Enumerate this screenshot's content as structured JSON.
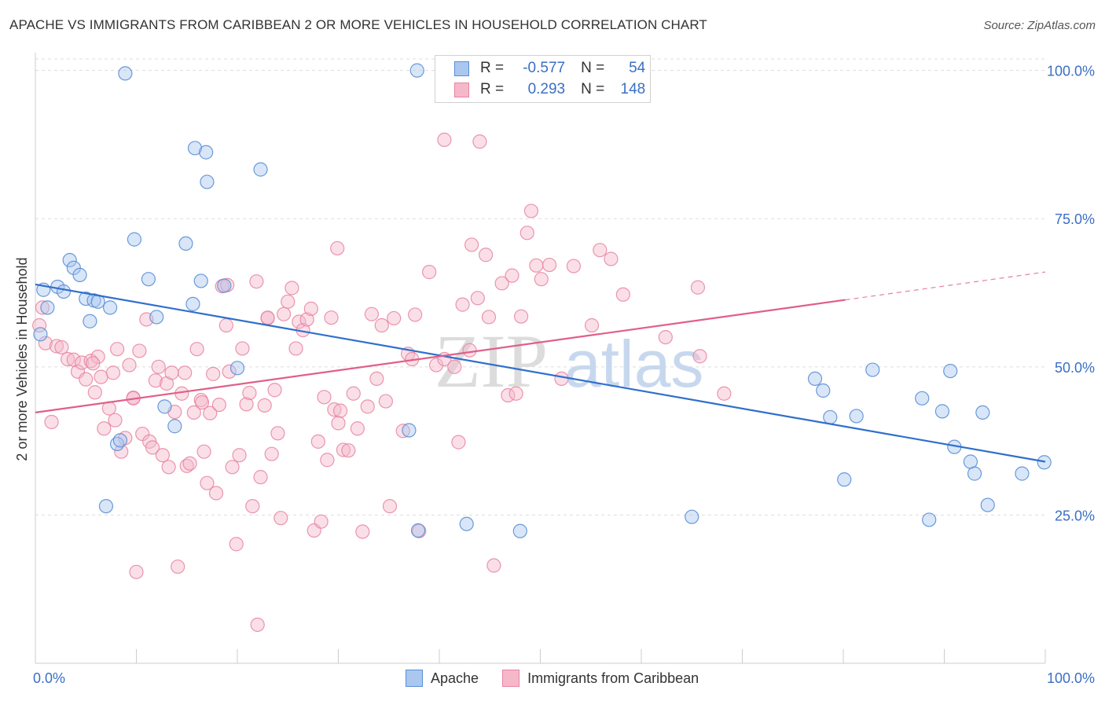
{
  "header": {
    "title": "APACHE VS IMMIGRANTS FROM CARIBBEAN 2 OR MORE VEHICLES IN HOUSEHOLD CORRELATION CHART",
    "source": "Source: ZipAtlas.com"
  },
  "legend": {
    "rows": [
      {
        "r_label": "R =",
        "r_value": "-0.577",
        "n_label": "N =",
        "n_value": "54"
      },
      {
        "r_label": "R =",
        "r_value": "0.293",
        "n_label": "N =",
        "n_value": "148"
      }
    ]
  },
  "watermark": {
    "zip": "ZIP",
    "atlas": "atlas"
  },
  "colors": {
    "apache_fill": "#a9c7ef",
    "apache_stroke": "#5b8fd6",
    "apache_line": "#2f6fcc",
    "carib_fill": "#f5b8cb",
    "carib_stroke": "#e8849f",
    "carib_line": "#e05f89",
    "tick_label": "#3a6fc4",
    "grid": "#dddddd"
  },
  "chart_data": {
    "type": "scatter",
    "title": "APACHE VS IMMIGRANTS FROM CARIBBEAN 2 OR MORE VEHICLES IN HOUSEHOLD CORRELATION CHART",
    "xlabel": "",
    "ylabel": "2 or more Vehicles in Household",
    "xlim": [
      0,
      100
    ],
    "ylim": [
      0,
      103
    ],
    "x_tick_labels": [
      "0.0%",
      "100.0%"
    ],
    "y_ticks": [
      25,
      50,
      75,
      100
    ],
    "y_tick_labels": [
      "25.0%",
      "50.0%",
      "75.0%",
      "100.0%"
    ],
    "grid": true,
    "legend_position": "bottom",
    "series": [
      {
        "name": "Apache",
        "r": -0.577,
        "n": 54,
        "trend": {
          "x": [
            0,
            100
          ],
          "y": [
            63.9,
            34.0
          ]
        },
        "points": [
          [
            0.5,
            55.5
          ],
          [
            0.8,
            63.0
          ],
          [
            1.2,
            60.0
          ],
          [
            2.2,
            63.5
          ],
          [
            2.8,
            62.7
          ],
          [
            3.4,
            68.0
          ],
          [
            3.8,
            66.7
          ],
          [
            4.4,
            65.5
          ],
          [
            5.0,
            61.5
          ],
          [
            5.4,
            57.7
          ],
          [
            5.8,
            61.2
          ],
          [
            6.2,
            61.0
          ],
          [
            7.4,
            60.0
          ],
          [
            7.0,
            26.5
          ],
          [
            8.1,
            37.0
          ],
          [
            8.4,
            37.6
          ],
          [
            8.9,
            99.5
          ],
          [
            9.8,
            71.5
          ],
          [
            11.2,
            64.8
          ],
          [
            12.0,
            58.4
          ],
          [
            12.8,
            43.3
          ],
          [
            13.8,
            40.0
          ],
          [
            14.9,
            70.8
          ],
          [
            15.6,
            60.6
          ],
          [
            15.8,
            86.9
          ],
          [
            16.4,
            64.5
          ],
          [
            16.9,
            86.2
          ],
          [
            17.0,
            81.2
          ],
          [
            18.7,
            63.7
          ],
          [
            20.0,
            49.8
          ],
          [
            22.3,
            83.3
          ],
          [
            37.0,
            39.3
          ],
          [
            37.9,
            22.4
          ],
          [
            37.8,
            100.0
          ],
          [
            42.7,
            23.5
          ],
          [
            48.0,
            22.3
          ],
          [
            65.0,
            24.7
          ],
          [
            77.2,
            48.0
          ],
          [
            78.0,
            46.0
          ],
          [
            78.7,
            41.5
          ],
          [
            80.1,
            31.0
          ],
          [
            81.3,
            41.7
          ],
          [
            82.9,
            49.5
          ],
          [
            87.8,
            44.7
          ],
          [
            88.5,
            24.2
          ],
          [
            89.8,
            42.5
          ],
          [
            90.6,
            49.3
          ],
          [
            91.0,
            36.5
          ],
          [
            92.6,
            34.0
          ],
          [
            93.0,
            32.0
          ],
          [
            93.8,
            42.3
          ],
          [
            94.3,
            26.7
          ],
          [
            97.7,
            32.0
          ],
          [
            99.9,
            33.9
          ]
        ]
      },
      {
        "name": "Immigrants from Caribbean",
        "r": 0.293,
        "n": 148,
        "trend": {
          "x": [
            0,
            80.2
          ],
          "y": [
            42.3,
            61.3
          ]
        },
        "trend_dashed": {
          "x": [
            80.2,
            100
          ],
          "y": [
            61.3,
            66.0
          ]
        },
        "points": [
          [
            0.4,
            57.0
          ],
          [
            0.7,
            60.0
          ],
          [
            1.0,
            54.0
          ],
          [
            1.6,
            40.7
          ],
          [
            2.1,
            53.5
          ],
          [
            2.6,
            53.3
          ],
          [
            3.2,
            51.3
          ],
          [
            3.8,
            51.2
          ],
          [
            4.2,
            49.2
          ],
          [
            4.6,
            50.7
          ],
          [
            5.0,
            47.9
          ],
          [
            5.5,
            51.0
          ],
          [
            5.9,
            45.7
          ],
          [
            6.2,
            51.7
          ],
          [
            6.5,
            48.3
          ],
          [
            6.8,
            39.6
          ],
          [
            7.3,
            43.0
          ],
          [
            7.7,
            49.0
          ],
          [
            7.9,
            41.0
          ],
          [
            8.1,
            53.0
          ],
          [
            8.5,
            35.7
          ],
          [
            8.9,
            38.0
          ],
          [
            9.3,
            50.3
          ],
          [
            9.7,
            44.8
          ],
          [
            10.0,
            15.4
          ],
          [
            10.3,
            52.7
          ],
          [
            10.6,
            38.7
          ],
          [
            11.0,
            58.0
          ],
          [
            11.3,
            37.4
          ],
          [
            11.6,
            36.4
          ],
          [
            11.9,
            47.7
          ],
          [
            12.2,
            50.0
          ],
          [
            12.6,
            35.1
          ],
          [
            13.0,
            47.2
          ],
          [
            13.2,
            33.1
          ],
          [
            13.5,
            49.0
          ],
          [
            13.8,
            42.4
          ],
          [
            14.1,
            16.3
          ],
          [
            14.5,
            45.5
          ],
          [
            14.8,
            49.0
          ],
          [
            15.0,
            33.3
          ],
          [
            15.3,
            33.7
          ],
          [
            15.7,
            42.3
          ],
          [
            16.0,
            53.0
          ],
          [
            16.4,
            44.4
          ],
          [
            16.7,
            35.7
          ],
          [
            17.0,
            30.4
          ],
          [
            17.3,
            42.2
          ],
          [
            17.6,
            48.8
          ],
          [
            17.9,
            28.7
          ],
          [
            18.2,
            43.6
          ],
          [
            18.5,
            63.6
          ],
          [
            18.9,
            57.0
          ],
          [
            19.2,
            49.2
          ],
          [
            19.5,
            33.1
          ],
          [
            19.9,
            20.1
          ],
          [
            20.2,
            35.1
          ],
          [
            20.5,
            53.1
          ],
          [
            20.9,
            43.7
          ],
          [
            21.2,
            45.6
          ],
          [
            21.5,
            26.5
          ],
          [
            21.9,
            64.4
          ],
          [
            22.3,
            31.4
          ],
          [
            22.7,
            43.5
          ],
          [
            22.0,
            6.5
          ],
          [
            23.0,
            58.2
          ],
          [
            23.4,
            35.3
          ],
          [
            23.7,
            46.1
          ],
          [
            24.0,
            38.8
          ],
          [
            24.3,
            24.5
          ],
          [
            24.6,
            58.9
          ],
          [
            25.0,
            61.0
          ],
          [
            25.4,
            63.3
          ],
          [
            25.8,
            53.1
          ],
          [
            26.1,
            57.6
          ],
          [
            26.5,
            56.2
          ],
          [
            26.9,
            58.0
          ],
          [
            27.3,
            59.8
          ],
          [
            27.6,
            22.4
          ],
          [
            28.0,
            37.4
          ],
          [
            28.3,
            23.9
          ],
          [
            28.6,
            44.9
          ],
          [
            28.9,
            34.3
          ],
          [
            29.3,
            58.3
          ],
          [
            29.6,
            42.8
          ],
          [
            29.9,
            70.0
          ],
          [
            30.2,
            42.6
          ],
          [
            30.5,
            36.0
          ],
          [
            31.0,
            35.9
          ],
          [
            31.5,
            45.5
          ],
          [
            31.9,
            39.6
          ],
          [
            32.4,
            22.2
          ],
          [
            32.9,
            43.3
          ],
          [
            33.3,
            58.9
          ],
          [
            33.8,
            48.0
          ],
          [
            34.3,
            57.0
          ],
          [
            34.7,
            44.2
          ],
          [
            35.1,
            26.5
          ],
          [
            35.5,
            58.2
          ],
          [
            36.4,
            39.2
          ],
          [
            36.9,
            52.2
          ],
          [
            37.3,
            51.3
          ],
          [
            37.6,
            58.8
          ],
          [
            38.0,
            22.3
          ],
          [
            39.0,
            66.0
          ],
          [
            39.7,
            50.3
          ],
          [
            40.5,
            51.3
          ],
          [
            41.5,
            50.0
          ],
          [
            41.9,
            37.3
          ],
          [
            42.3,
            60.5
          ],
          [
            43.0,
            52.8
          ],
          [
            43.2,
            70.6
          ],
          [
            43.8,
            61.6
          ],
          [
            44.6,
            68.9
          ],
          [
            44.9,
            58.4
          ],
          [
            45.4,
            16.5
          ],
          [
            46.2,
            64.1
          ],
          [
            46.8,
            45.2
          ],
          [
            47.2,
            65.4
          ],
          [
            47.6,
            45.5
          ],
          [
            48.1,
            58.5
          ],
          [
            48.7,
            72.6
          ],
          [
            49.1,
            76.3
          ],
          [
            49.6,
            67.1
          ],
          [
            50.1,
            64.8
          ],
          [
            50.9,
            67.2
          ],
          [
            52.1,
            48.0
          ],
          [
            53.3,
            67.0
          ],
          [
            55.1,
            57.0
          ],
          [
            55.9,
            69.7
          ],
          [
            57.0,
            68.2
          ],
          [
            58.2,
            62.2
          ],
          [
            62.4,
            55.0
          ],
          [
            65.6,
            63.4
          ],
          [
            65.8,
            51.8
          ],
          [
            68.2,
            45.5
          ],
          [
            40.5,
            88.3
          ],
          [
            19.0,
            63.8
          ],
          [
            5.7,
            50.6
          ],
          [
            9.7,
            44.7
          ],
          [
            16.5,
            44.0
          ],
          [
            23.0,
            58.3
          ],
          [
            44.0,
            88.0
          ],
          [
            30.0,
            40.5
          ]
        ]
      }
    ]
  },
  "bottom_legend": [
    "Apache",
    "Immigrants from Caribbean"
  ]
}
